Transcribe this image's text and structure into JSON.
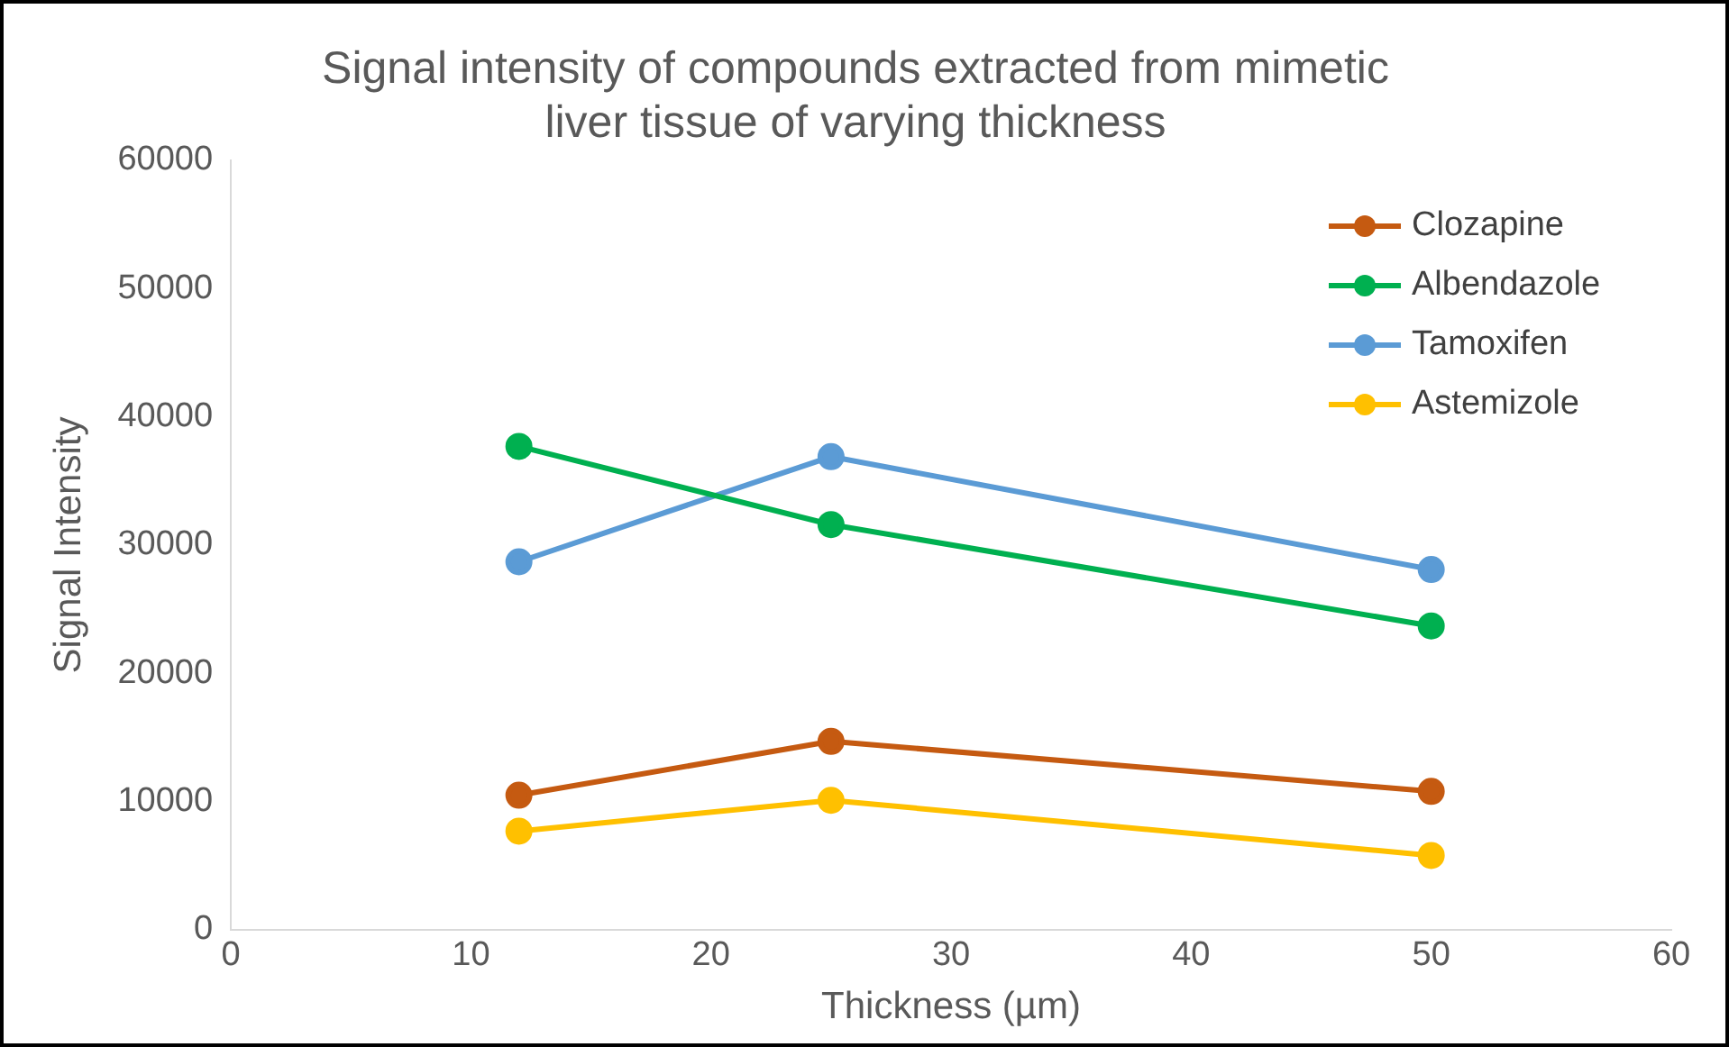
{
  "chart_data": {
    "type": "line",
    "title": [
      "Signal intensity of compounds extracted from mimetic",
      "liver tissue of varying thickness"
    ],
    "xlabel": "Thickness (µm)",
    "ylabel": "Signal Intensity",
    "x": [
      12,
      25,
      50
    ],
    "series": [
      {
        "name": "Clozapine",
        "color": "#c55a11",
        "values": [
          10500,
          14700,
          10800
        ]
      },
      {
        "name": "Albendazole",
        "color": "#00b050",
        "values": [
          37700,
          31600,
          23700
        ]
      },
      {
        "name": "Tamoxifen",
        "color": "#5b9bd5",
        "values": [
          28700,
          36900,
          28100
        ]
      },
      {
        "name": "Astemizole",
        "color": "#ffc000",
        "values": [
          7700,
          10100,
          5800
        ]
      }
    ],
    "xlim": [
      0,
      60
    ],
    "xticks": [
      0,
      10,
      20,
      30,
      40,
      50,
      60
    ],
    "ylim": [
      0,
      60000
    ],
    "yticks": [
      0,
      10000,
      20000,
      30000,
      40000,
      50000,
      60000
    ],
    "grid": false,
    "legend": "top right",
    "marker": "circle",
    "line_style": "solid"
  }
}
